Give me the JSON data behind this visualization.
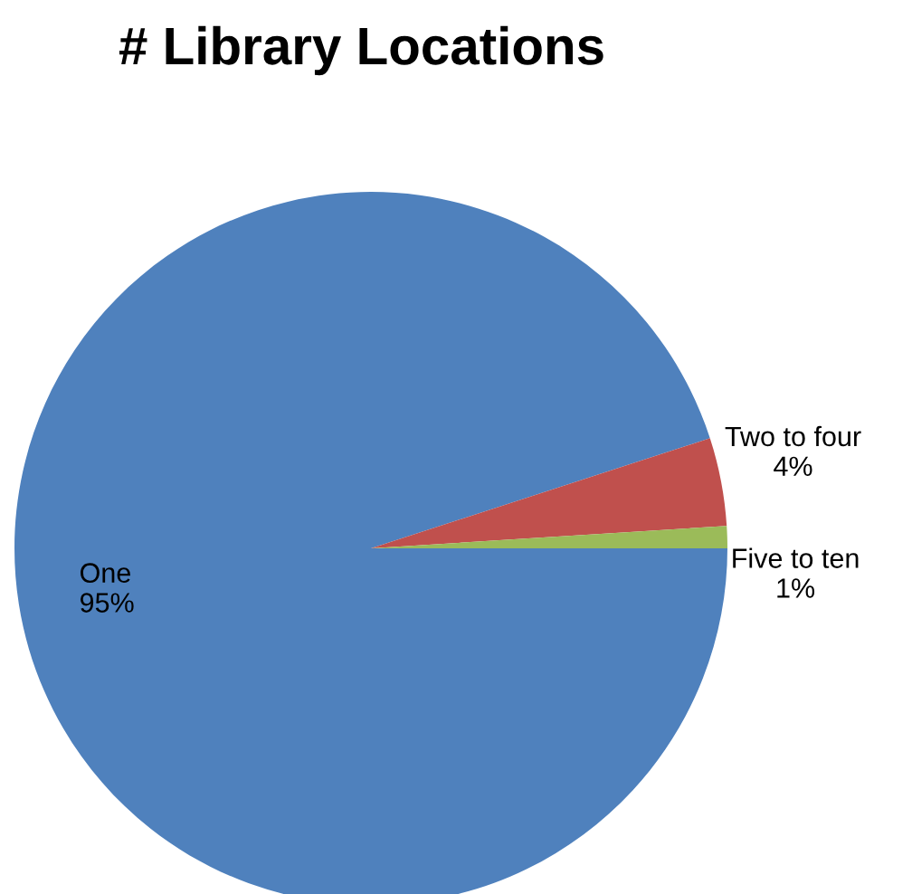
{
  "chart_data": {
    "type": "pie",
    "title": "# Library Locations",
    "categories": [
      "One",
      "Two to four",
      "Five to ten"
    ],
    "values": [
      95,
      4,
      1
    ],
    "value_labels": [
      "95%",
      "4%",
      "1%"
    ],
    "colors": [
      "#4f81bd",
      "#c0504d",
      "#9bbb59"
    ],
    "legend": false
  }
}
